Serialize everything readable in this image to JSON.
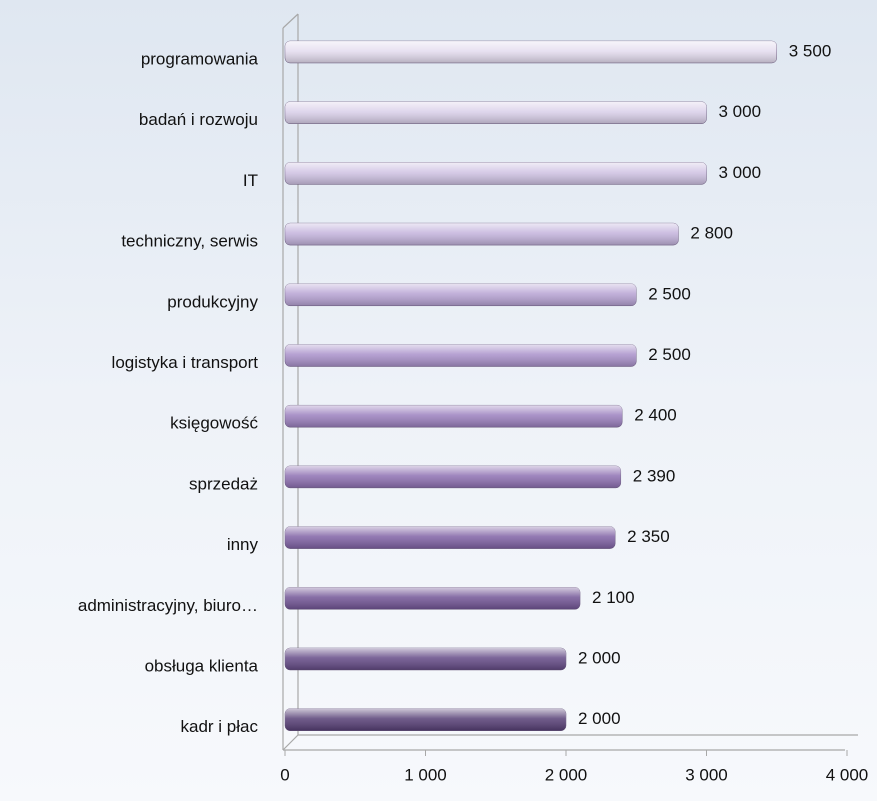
{
  "chart_data": {
    "type": "bar",
    "orientation": "horizontal",
    "categories": [
      "programowania",
      "badań i rozwoju",
      "IT",
      "techniczny, serwis",
      "produkcyjny",
      "logistyka i transport",
      "księgowość",
      "sprzedaż",
      "inny",
      "administracyjny, biuro…",
      "obsługa klienta",
      "kadr i płac"
    ],
    "values": [
      3500,
      3000,
      3000,
      2800,
      2500,
      2500,
      2400,
      2390,
      2350,
      2100,
      2000,
      2000
    ],
    "value_labels": [
      "3 500",
      "3 000",
      "3 000",
      "2 800",
      "2 500",
      "2 500",
      "2 400",
      "2 390",
      "2 350",
      "2 100",
      "2 000",
      "2 000"
    ],
    "colors": [
      "#e4dcef",
      "#d9cfe9",
      "#cfc2e3",
      "#c3b3dc",
      "#b6a2d3",
      "#a991ca",
      "#9b80be",
      "#8e70b2",
      "#8062a5",
      "#725596",
      "#644a86",
      "#573f76"
    ],
    "xlim": [
      0,
      4000
    ],
    "xticks": [
      0,
      {
        "value": 1000,
        "label": "1 000"
      },
      {
        "value": 2000,
        "label": "2 000"
      },
      {
        "value": 3000,
        "label": "3 000"
      },
      {
        "value": 4000,
        "label": "4 000"
      }
    ]
  }
}
